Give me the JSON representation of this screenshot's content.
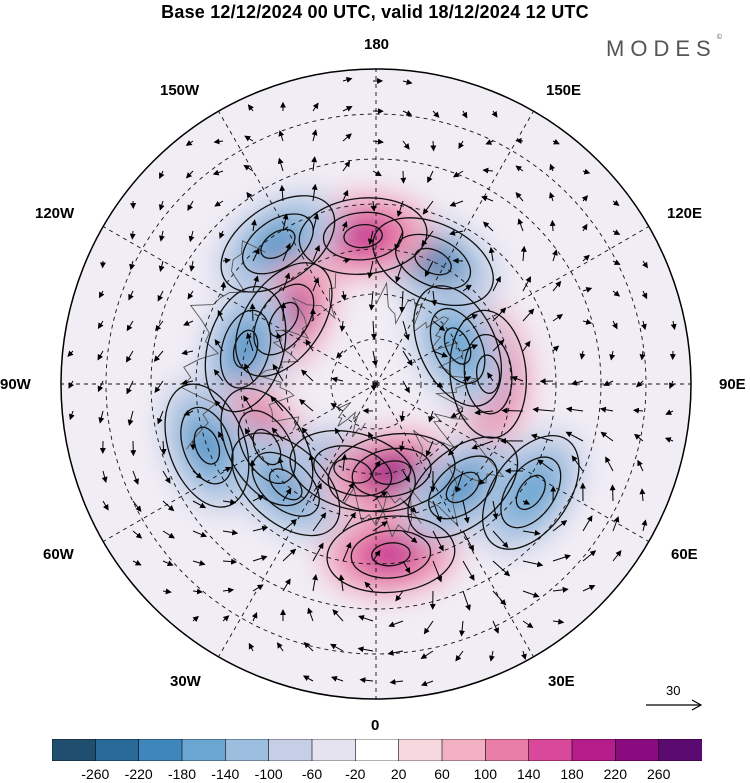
{
  "header": {
    "title": "Base 12/12/2024 00 UTC, valid 18/12/2024 12 UTC",
    "brand": "MODES",
    "brand_mark": "©"
  },
  "map": {
    "projection": "north-polar-stereographic",
    "longitude_labels": {
      "top": "180",
      "top_right": "150E",
      "right_upper": "120E",
      "right": "90E",
      "right_lower": "60E",
      "bottom_right": "30E",
      "bottom": "0",
      "bottom_left": "30W",
      "left_lower": "60W",
      "left": "90W",
      "left_upper": "120W",
      "top_left": "150W"
    },
    "reference_vector": {
      "value": "30"
    }
  },
  "colorbar": {
    "ticks": [
      "-260",
      "-220",
      "-180",
      "-140",
      "-100",
      "-60",
      "-20",
      "20",
      "60",
      "100",
      "140",
      "180",
      "220",
      "260"
    ],
    "colors": [
      "#1f4e6f",
      "#2a6a98",
      "#3f86bd",
      "#6aa6d1",
      "#9cbfe0",
      "#c6cfe6",
      "#e6e3f1",
      "#ffffff",
      "#f6d8de",
      "#f2b1c3",
      "#e97ea8",
      "#d9489a",
      "#b51d8a",
      "#8a0b7f",
      "#5b0a6f"
    ]
  },
  "anomalies": [
    {
      "name": "nw-pacific-low",
      "lon": 155,
      "colat": 30,
      "value": -230
    },
    {
      "name": "ne-pacific-high",
      "lon": 185,
      "colat": 33,
      "value": 210
    },
    {
      "name": "alaska-low",
      "lon": 215,
      "colat": 38,
      "value": -210
    },
    {
      "name": "n-america-high",
      "lon": 235,
      "colat": 25,
      "value": 230
    },
    {
      "name": "canada-low",
      "lon": 255,
      "colat": 30,
      "value": -190
    },
    {
      "name": "hudson-high",
      "lon": 300,
      "colat": 28,
      "value": 240
    },
    {
      "name": "atlantic-low",
      "lon": 318,
      "colat": 30,
      "value": -220
    },
    {
      "name": "greenland-low",
      "lon": 345,
      "colat": 20,
      "value": -180
    },
    {
      "name": "nw-atlantic-low",
      "lon": 290,
      "colat": 40,
      "value": -220
    },
    {
      "name": "europe-high",
      "lon": 10,
      "colat": 20,
      "value": 240
    },
    {
      "name": "n-atlantic-high",
      "lon": 5,
      "colat": 38,
      "value": 200
    },
    {
      "name": "siberia-low",
      "lon": 40,
      "colat": 30,
      "value": -220
    },
    {
      "name": "urals-low",
      "lon": 55,
      "colat": 42,
      "value": -180
    },
    {
      "name": "c-asia-high",
      "lon": 95,
      "colat": 25,
      "value": 230
    },
    {
      "name": "e-siberia-low",
      "lon": 115,
      "colat": 20,
      "value": -180
    }
  ]
}
